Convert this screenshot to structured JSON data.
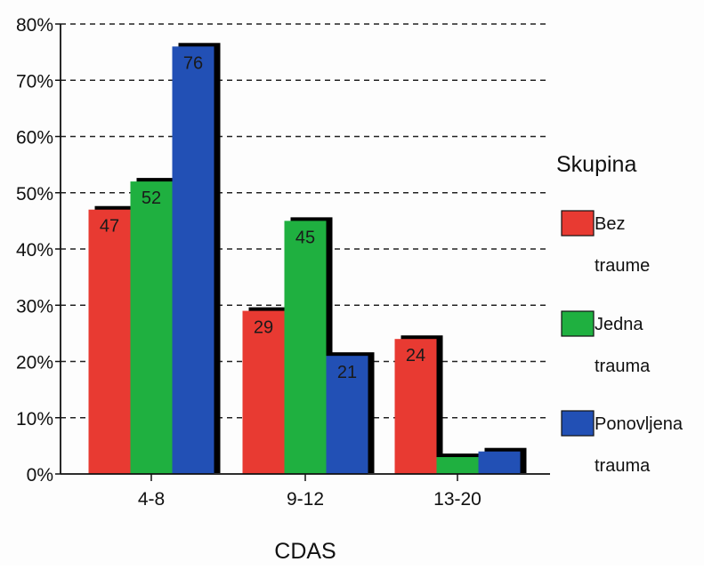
{
  "chart_data": {
    "type": "bar",
    "categories": [
      "4-8",
      "9-12",
      "13-20"
    ],
    "series": [
      {
        "name": "Bez traume",
        "values": [
          47,
          29,
          24
        ],
        "color": "#e83a32",
        "data_labels": [
          "47",
          "29",
          "24"
        ]
      },
      {
        "name": "Jedna trauma",
        "values": [
          52,
          45,
          3
        ],
        "color": "#1fb040",
        "data_labels": [
          "52",
          "45",
          ""
        ]
      },
      {
        "name": "Ponovljena trauma",
        "values": [
          76,
          21,
          4
        ],
        "color": "#2250b5",
        "data_labels": [
          "76",
          "21",
          ""
        ]
      }
    ],
    "xlabel": "CDAS",
    "ylabel": "",
    "ylim": [
      0,
      80
    ],
    "y_ticks": [
      0,
      10,
      20,
      30,
      40,
      50,
      60,
      70,
      80
    ],
    "y_tick_labels": [
      "0%",
      "10%",
      "20%",
      "30%",
      "40%",
      "50%",
      "60%",
      "70%",
      "80%"
    ],
    "grid": "dashed horizontal",
    "legend": {
      "title": "Skupina",
      "position": "right",
      "entries": [
        {
          "line1": "Bez",
          "line2": "traume"
        },
        {
          "line1": "Jedna",
          "line2": "trauma"
        },
        {
          "line1": "Ponovljena",
          "line2": "trauma"
        }
      ]
    },
    "shadow_color": "#000000"
  }
}
